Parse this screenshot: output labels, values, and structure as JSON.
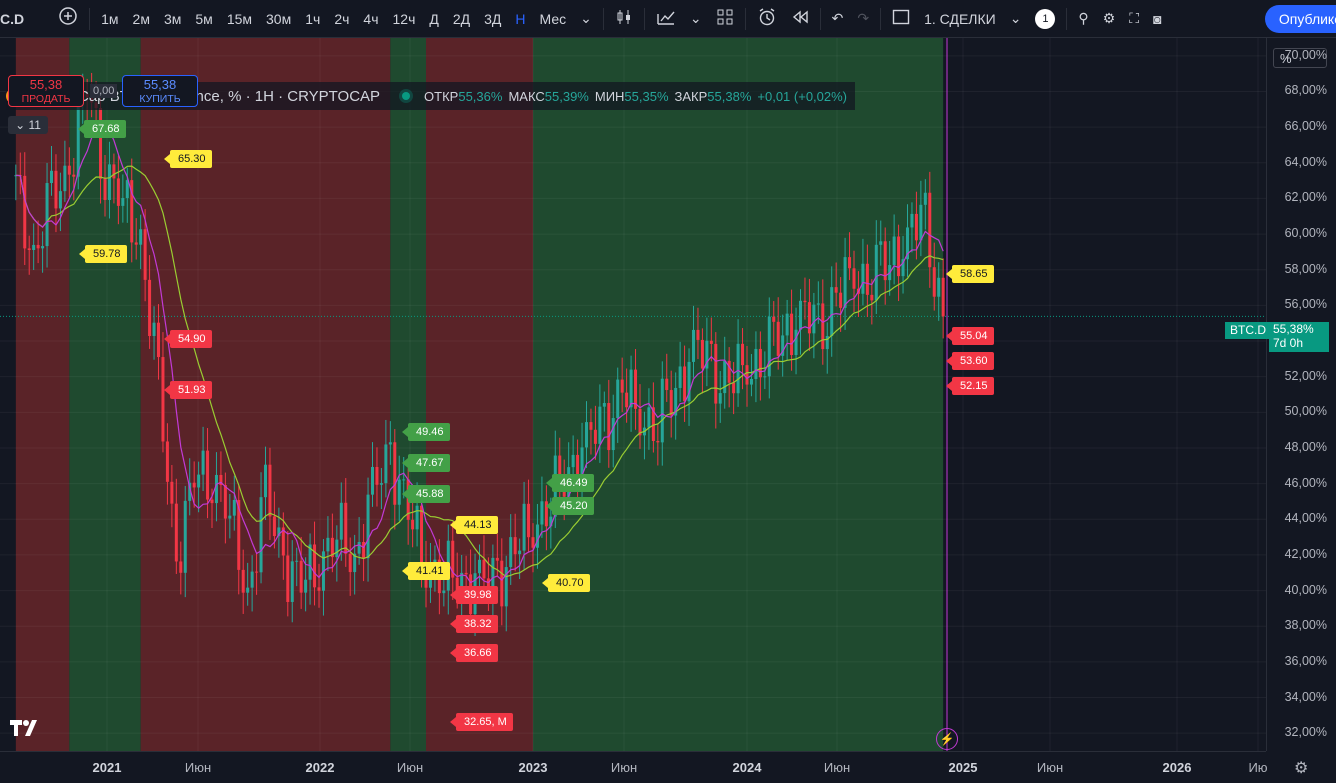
{
  "toolbar": {
    "symbol": "C.D",
    "add_symbol_icon": "plus-circle-icon",
    "intervals": [
      "1м",
      "2м",
      "3м",
      "5м",
      "15м",
      "30м",
      "1ч",
      "2ч",
      "4ч",
      "12ч",
      "Д",
      "2Д",
      "3Д",
      "Н",
      "Мес"
    ],
    "active_interval": "Н",
    "layout_name": "1. СДЕЛКИ",
    "layout_badge": "1",
    "publish_label": "Опублико"
  },
  "legend": {
    "title": "Market Cap BTC Dominance, % · 1H · CRYPTOCAP",
    "open_label": "ОТКР",
    "open": "55,36%",
    "high_label": "МАКС",
    "high": "55,39%",
    "low_label": "МИН",
    "low": "55,35%",
    "close_label": "ЗАКР",
    "close": "55,38%",
    "change": "+0,01 (+0,02%)"
  },
  "trade": {
    "sell_price": "55,38",
    "sell_label": "ПРОДАТЬ",
    "spread": "0,00",
    "buy_price": "55,38",
    "buy_label": "КУПИТЬ",
    "indicators_count": "11"
  },
  "price_axis": {
    "unit_button": "%",
    "ticks": [
      "70,00%",
      "68,00%",
      "66,00%",
      "64,00%",
      "62,00%",
      "60,00%",
      "58,00%",
      "56,00%",
      "54,00%",
      "52,00%",
      "50,00%",
      "48,00%",
      "46,00%",
      "44,00%",
      "42,00%",
      "40,00%",
      "38,00%",
      "36,00%",
      "34,00%",
      "32,00%"
    ],
    "current_symbol": "BTC.D",
    "current_price": "55,38%",
    "countdown": "7d 0h"
  },
  "time_axis": {
    "ticks": [
      {
        "label": "2021",
        "year": true
      },
      {
        "label": "Июн",
        "year": false
      },
      {
        "label": "2022",
        "year": true
      },
      {
        "label": "Июн",
        "year": false
      },
      {
        "label": "2023",
        "year": true
      },
      {
        "label": "Июн",
        "year": false
      },
      {
        "label": "2024",
        "year": true
      },
      {
        "label": "Июн",
        "year": false
      },
      {
        "label": "2025",
        "year": true
      },
      {
        "label": "Июн",
        "year": false
      },
      {
        "label": "2026",
        "year": true
      },
      {
        "label": "Ию",
        "year": false
      }
    ]
  },
  "chart_labels": [
    {
      "text": "65.30",
      "kind": "y"
    },
    {
      "text": "59.78",
      "kind": "y"
    },
    {
      "text": "54.90",
      "kind": "r"
    },
    {
      "text": "51.93",
      "kind": "r"
    },
    {
      "text": "67.68",
      "kind": "g"
    },
    {
      "text": "49.46",
      "kind": "g"
    },
    {
      "text": "47.67",
      "kind": "g"
    },
    {
      "text": "45.88",
      "kind": "g"
    },
    {
      "text": "44.13",
      "kind": "y"
    },
    {
      "text": "41.41",
      "kind": "y"
    },
    {
      "text": "39.98",
      "kind": "r"
    },
    {
      "text": "38.32",
      "kind": "r"
    },
    {
      "text": "36.66",
      "kind": "r"
    },
    {
      "text": "32.65, M",
      "kind": "r"
    },
    {
      "text": "46.49",
      "kind": "g"
    },
    {
      "text": "45.20",
      "kind": "g"
    },
    {
      "text": "40.70",
      "kind": "y"
    },
    {
      "text": "58.65",
      "kind": "y"
    },
    {
      "text": "55.04",
      "kind": "r"
    },
    {
      "text": "53.60",
      "kind": "r"
    },
    {
      "text": "52.15",
      "kind": "r"
    }
  ],
  "colors": {
    "bull_zone": "#1f4a2f",
    "bear_zone": "#5a2328",
    "candle_up": "#26a69a",
    "candle_down": "#f23645",
    "ma_fast": "#c23ad6",
    "ma_slow": "#9acd32",
    "accent": "#2962ff"
  },
  "chart_data": {
    "type": "candlestick",
    "title": "Market Cap BTC Dominance, %",
    "interval": "1H",
    "ylim": [
      31,
      71
    ],
    "y_unit": "%",
    "x_range": [
      "2020-08",
      "2026-10"
    ],
    "closes_by_month": [
      {
        "x": "2020-08",
        "y": 62.5
      },
      {
        "x": "2020-09",
        "y": 59.0
      },
      {
        "x": "2020-10",
        "y": 61.5
      },
      {
        "x": "2020-11",
        "y": 64.0
      },
      {
        "x": "2020-12",
        "y": 68.0
      },
      {
        "x": "2021-01",
        "y": 64.0
      },
      {
        "x": "2021-02",
        "y": 61.5
      },
      {
        "x": "2021-03",
        "y": 60.0
      },
      {
        "x": "2021-04",
        "y": 51.0
      },
      {
        "x": "2021-05",
        "y": 42.0
      },
      {
        "x": "2021-06",
        "y": 46.0
      },
      {
        "x": "2021-07",
        "y": 47.0
      },
      {
        "x": "2021-08",
        "y": 44.0
      },
      {
        "x": "2021-09",
        "y": 40.0
      },
      {
        "x": "2021-10",
        "y": 45.0
      },
      {
        "x": "2021-11",
        "y": 42.0
      },
      {
        "x": "2021-12",
        "y": 40.0
      },
      {
        "x": "2022-01",
        "y": 42.0
      },
      {
        "x": "2022-02",
        "y": 43.0
      },
      {
        "x": "2022-03",
        "y": 42.0
      },
      {
        "x": "2022-04",
        "y": 45.0
      },
      {
        "x": "2022-05",
        "y": 48.0
      },
      {
        "x": "2022-06",
        "y": 44.0
      },
      {
        "x": "2022-07",
        "y": 42.0
      },
      {
        "x": "2022-08",
        "y": 40.5
      },
      {
        "x": "2022-09",
        "y": 41.0
      },
      {
        "x": "2022-10",
        "y": 40.0
      },
      {
        "x": "2022-11",
        "y": 41.0
      },
      {
        "x": "2022-12",
        "y": 42.0
      },
      {
        "x": "2023-01",
        "y": 44.0
      },
      {
        "x": "2023-02",
        "y": 45.0
      },
      {
        "x": "2023-03",
        "y": 47.0
      },
      {
        "x": "2023-04",
        "y": 48.0
      },
      {
        "x": "2023-05",
        "y": 49.5
      },
      {
        "x": "2023-06",
        "y": 51.0
      },
      {
        "x": "2023-07",
        "y": 50.0
      },
      {
        "x": "2023-08",
        "y": 49.5
      },
      {
        "x": "2023-09",
        "y": 51.5
      },
      {
        "x": "2023-10",
        "y": 53.5
      },
      {
        "x": "2023-11",
        "y": 52.5
      },
      {
        "x": "2023-12",
        "y": 51.5
      },
      {
        "x": "2024-01",
        "y": 52.5
      },
      {
        "x": "2024-02",
        "y": 53.5
      },
      {
        "x": "2024-03",
        "y": 54.5
      },
      {
        "x": "2024-04",
        "y": 55.5
      },
      {
        "x": "2024-05",
        "y": 54.5
      },
      {
        "x": "2024-06",
        "y": 56.5
      },
      {
        "x": "2024-07",
        "y": 57.5
      },
      {
        "x": "2024-08",
        "y": 58.0
      },
      {
        "x": "2024-09",
        "y": 58.5
      },
      {
        "x": "2024-10",
        "y": 60.0
      },
      {
        "x": "2024-11",
        "y": 60.5
      },
      {
        "x": "2024-12",
        "y": 55.38
      }
    ],
    "zones": [
      {
        "from": "2020-08",
        "to": "2020-11",
        "kind": "bear"
      },
      {
        "from": "2020-11",
        "to": "2021-03",
        "kind": "bull"
      },
      {
        "from": "2021-03",
        "to": "2022-05",
        "kind": "bear"
      },
      {
        "from": "2022-05",
        "to": "2022-07",
        "kind": "bull"
      },
      {
        "from": "2022-07",
        "to": "2023-01",
        "kind": "bear"
      },
      {
        "from": "2023-01",
        "to": "2024-12",
        "kind": "bull"
      }
    ]
  }
}
